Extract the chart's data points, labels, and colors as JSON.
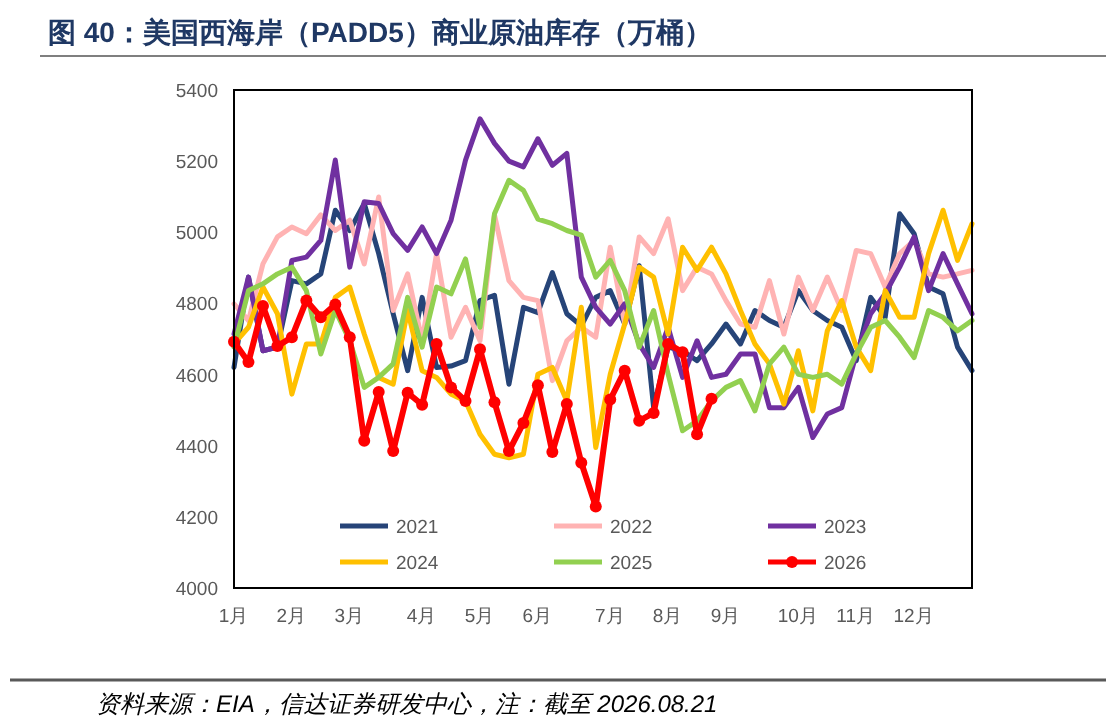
{
  "chart_data": {
    "type": "line",
    "title": "图 40：美国西海岸（PADD5）商业原油库存（万桶）",
    "categories": [
      "1月",
      null,
      null,
      null,
      "2月",
      null,
      null,
      null,
      "3月",
      null,
      null,
      null,
      null,
      "4月",
      null,
      null,
      null,
      "5月",
      null,
      null,
      null,
      "6月",
      null,
      null,
      null,
      null,
      "7月",
      null,
      null,
      null,
      "8月",
      null,
      null,
      null,
      "9月",
      null,
      null,
      null,
      null,
      "10月",
      null,
      null,
      null,
      "11月",
      null,
      null,
      null,
      "12月",
      null,
      null,
      null,
      null
    ],
    "series": [
      {
        "name": "2021",
        "color": "#264478",
        "marker": "none",
        "values": [
          4620,
          4874,
          4667,
          4677,
          4864,
          4855,
          4883,
          5062,
          5005,
          5081,
          4940,
          4771,
          4611,
          4817,
          4620,
          4624,
          4639,
          4808,
          4823,
          4573,
          4789,
          4774,
          4887,
          4771,
          4737,
          4817,
          4836,
          4742,
          4906,
          4507,
          4677,
          4667,
          4639,
          4686,
          4742,
          4686,
          4780,
          4752,
          4733,
          4836,
          4780,
          4752,
          4733,
          4639,
          4817,
          4761,
          5052,
          4996,
          4846,
          4827,
          4677,
          4611
        ]
      },
      {
        "name": "2022",
        "color": "#ffb3b3",
        "marker": "none",
        "values": [
          4799,
          4752,
          4911,
          4987,
          5015,
          4996,
          5049,
          5005,
          5034,
          4911,
          5099,
          4780,
          4883,
          4695,
          4940,
          4705,
          4789,
          4695,
          5049,
          4864,
          4817,
          4808,
          4583,
          4695,
          4733,
          4705,
          4958,
          4742,
          4987,
          4940,
          5038,
          4836,
          4902,
          4883,
          4808,
          4742,
          4733,
          4864,
          4714,
          4874,
          4780,
          4874,
          4780,
          4949,
          4940,
          4846,
          4940,
          4977,
          4883,
          4874,
          4883,
          4893
        ]
      },
      {
        "name": "2023",
        "color": "#7030a0",
        "marker": "none",
        "values": [
          4714,
          4874,
          4667,
          4677,
          4921,
          4930,
          4977,
          5203,
          4902,
          5086,
          5081,
          4996,
          4949,
          5015,
          4940,
          5034,
          5203,
          5319,
          5250,
          5200,
          5184,
          5263,
          5188,
          5222,
          4874,
          4789,
          4742,
          4799,
          4686,
          4620,
          4733,
          4592,
          4695,
          4592,
          4601,
          4658,
          4658,
          4507,
          4507,
          4564,
          4423,
          4489,
          4507,
          4658,
          4771,
          4827,
          4902,
          4987,
          4836,
          4940,
          4855,
          4771
        ]
      },
      {
        "name": "2024",
        "color": "#ffc000",
        "marker": "none",
        "values": [
          4686,
          4733,
          4846,
          4771,
          4545,
          4686,
          4686,
          4817,
          4846,
          4714,
          4592,
          4573,
          4780,
          4611,
          4592,
          4545,
          4526,
          4432,
          4376,
          4366,
          4376,
          4601,
          4620,
          4526,
          4789,
          4395,
          4601,
          4742,
          4902,
          4874,
          4714,
          4958,
          4893,
          4958,
          4883,
          4780,
          4686,
          4630,
          4517,
          4667,
          4498,
          4723,
          4808,
          4677,
          4611,
          4836,
          4761,
          4761,
          4940,
          5062,
          4921,
          5024
        ]
      },
      {
        "name": "2025",
        "color": "#92d050",
        "marker": "none",
        "values": [
          4677,
          4836,
          4855,
          4883,
          4902,
          4836,
          4658,
          4780,
          4695,
          4564,
          4592,
          4630,
          4817,
          4677,
          4846,
          4827,
          4925,
          4733,
          5052,
          5146,
          5118,
          5037,
          5024,
          5005,
          4992,
          4874,
          4921,
          4836,
          4677,
          4780,
          4601,
          4442,
          4470,
          4526,
          4564,
          4583,
          4498,
          4630,
          4677,
          4601,
          4592,
          4601,
          4573,
          4658,
          4733,
          4752,
          4705,
          4648,
          4780,
          4761,
          4723,
          4752
        ]
      },
      {
        "name": "2026",
        "color": "#ff0000",
        "marker": "circle",
        "values": [
          4692,
          4635,
          4793,
          4680,
          4705,
          4808,
          4761,
          4797,
          4705,
          4414,
          4551,
          4385,
          4549,
          4515,
          4686,
          4564,
          4526,
          4671,
          4522,
          4385,
          4464,
          4570,
          4382,
          4517,
          4352,
          4229,
          4530,
          4611,
          4470,
          4492,
          4686,
          4663,
          4432,
          4532,
          null,
          null,
          null,
          null,
          null,
          null,
          null,
          null,
          null,
          null,
          null,
          null,
          null,
          null,
          null,
          null,
          null,
          null
        ]
      }
    ],
    "ylim": [
      4000,
      5400
    ],
    "yticks": [
      4000,
      4200,
      4400,
      4600,
      4800,
      5000,
      5200,
      5400
    ],
    "grid": false,
    "legend": "bottom",
    "annotations": [
      "资料来源：EIA，信达证券研发中心，注：截至 2026.08.21"
    ]
  }
}
